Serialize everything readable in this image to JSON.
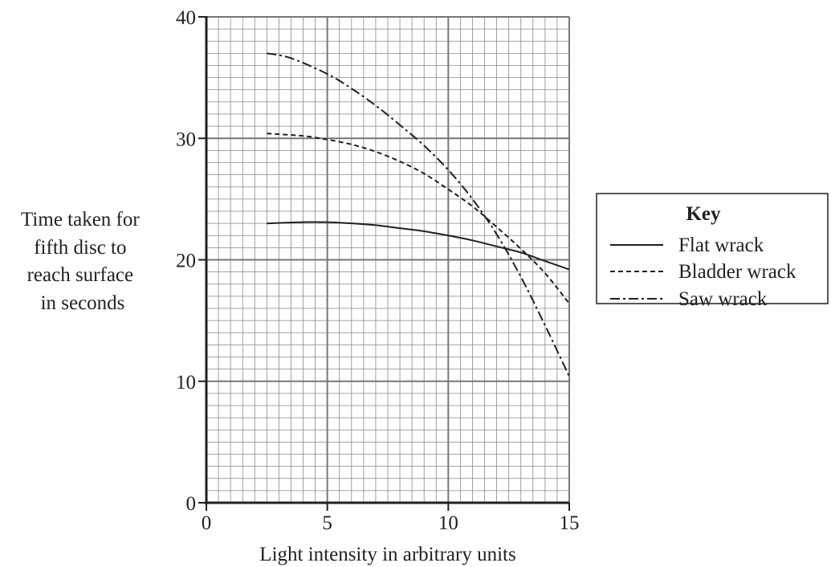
{
  "chart_data": {
    "type": "line",
    "title": "",
    "xlabel": "Light intensity in arbitrary units",
    "ylabel": [
      "Time taken for",
      "fifth disc to",
      "reach surface",
      "in seconds"
    ],
    "xlim": [
      0,
      15
    ],
    "ylim": [
      0,
      40
    ],
    "x_ticks": [
      0,
      5,
      10,
      15
    ],
    "y_ticks": [
      0,
      10,
      20,
      30,
      40
    ],
    "grid": true,
    "grid_minor_x": 0.5,
    "grid_minor_y": 1,
    "legend": {
      "title": "Key",
      "placement": "right",
      "entries": [
        "Flat wrack",
        "Bladder wrack",
        "Saw wrack"
      ]
    },
    "series": [
      {
        "name": "Flat wrack",
        "style": "solid",
        "points": [
          [
            2.5,
            23.0
          ],
          [
            4,
            23.1
          ],
          [
            5,
            23.1
          ],
          [
            6,
            23.0
          ],
          [
            7,
            22.85
          ],
          [
            8,
            22.6
          ],
          [
            9,
            22.35
          ],
          [
            10,
            22.0
          ],
          [
            11,
            21.6
          ],
          [
            12,
            21.1
          ],
          [
            13,
            20.6
          ],
          [
            14,
            19.9
          ],
          [
            15,
            19.2
          ]
        ]
      },
      {
        "name": "Bladder wrack",
        "style": "dashed",
        "points": [
          [
            2.5,
            30.4
          ],
          [
            4,
            30.2
          ],
          [
            5,
            29.9
          ],
          [
            6,
            29.5
          ],
          [
            7,
            28.9
          ],
          [
            8,
            28.1
          ],
          [
            9,
            27.1
          ],
          [
            10,
            25.8
          ],
          [
            11,
            24.4
          ],
          [
            12,
            22.7
          ],
          [
            13,
            20.9
          ],
          [
            14,
            18.9
          ],
          [
            15,
            16.4
          ]
        ]
      },
      {
        "name": "Saw wrack",
        "style": "dashdot",
        "points": [
          [
            2.5,
            37.0
          ],
          [
            3.5,
            36.6
          ],
          [
            5,
            35.3
          ],
          [
            6,
            34.1
          ],
          [
            7,
            32.7
          ],
          [
            8,
            31.1
          ],
          [
            9,
            29.4
          ],
          [
            10,
            27.4
          ],
          [
            11,
            25.0
          ],
          [
            12,
            22.1
          ],
          [
            13,
            18.6
          ],
          [
            14,
            14.6
          ],
          [
            15,
            10.4
          ]
        ]
      }
    ]
  }
}
